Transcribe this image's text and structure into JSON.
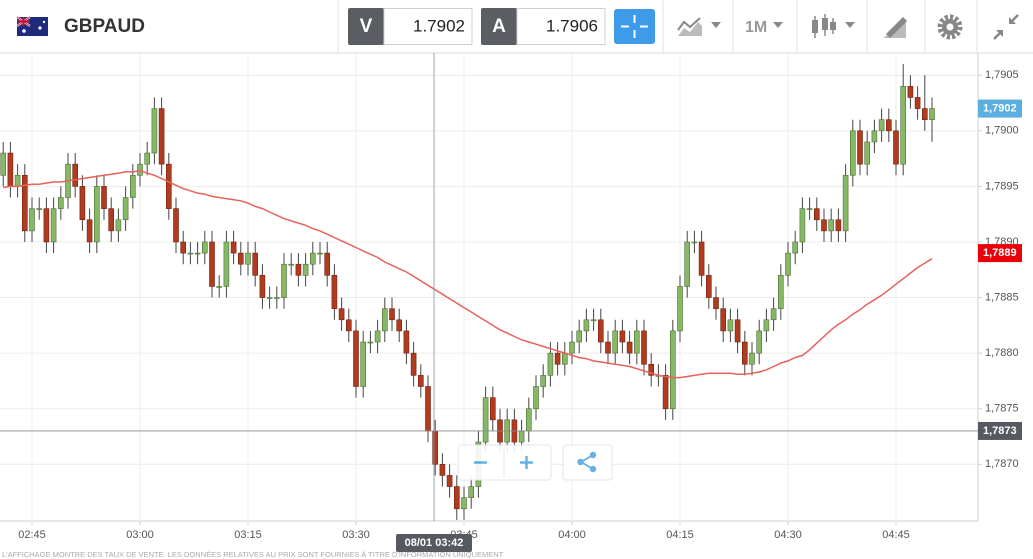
{
  "header": {
    "symbol": "GBPAUD",
    "sell_label": "V",
    "sell_price": 1.7902,
    "buy_label": "A",
    "buy_price": 1.7906,
    "timeframe": "1M"
  },
  "chart_data": {
    "type": "candlestick",
    "categories": [
      null,
      null,
      null,
      null,
      "02:45",
      null,
      null,
      null,
      null,
      null,
      null,
      null,
      null,
      null,
      null,
      null,
      null,
      null,
      null,
      "03:00",
      null,
      null,
      null,
      null,
      null,
      null,
      null,
      null,
      null,
      null,
      null,
      null,
      null,
      null,
      "03:15",
      null,
      null,
      null,
      null,
      null,
      null,
      null,
      null,
      null,
      null,
      null,
      null,
      null,
      null,
      "03:30",
      null,
      null,
      null,
      null,
      null,
      null,
      null,
      null,
      null,
      null,
      null,
      null,
      null,
      null,
      "03:45",
      null,
      null,
      null,
      null,
      null,
      null,
      null,
      null,
      null,
      null,
      null,
      null,
      null,
      null,
      "04:00",
      null,
      null,
      null,
      null,
      null,
      null,
      null,
      null,
      null,
      null,
      null,
      null,
      null,
      null,
      "04:15",
      null,
      null,
      null,
      null,
      null,
      null,
      null,
      null,
      null,
      null,
      null,
      null,
      null,
      null,
      "04:30",
      null,
      null,
      null,
      null,
      null,
      null,
      null,
      null,
      null,
      null,
      null,
      null,
      null,
      null,
      "04:45",
      null,
      null,
      null,
      null,
      null
    ],
    "open": [
      1.7896,
      1.7898,
      1.7895,
      1.7896,
      1.7891,
      1.7893,
      1.7893,
      1.789,
      1.7893,
      1.7894,
      1.7897,
      1.7895,
      1.7892,
      1.789,
      1.7895,
      1.7893,
      1.7891,
      1.7892,
      1.7894,
      1.7896,
      1.7897,
      1.7898,
      1.7902,
      1.7897,
      1.7893,
      1.789,
      1.7889,
      1.7889,
      1.7889,
      1.789,
      1.7886,
      1.7886,
      1.789,
      1.7889,
      1.7888,
      1.7889,
      1.7887,
      1.7885,
      1.7885,
      1.7885,
      1.7888,
      1.7888,
      1.7887,
      1.7888,
      1.7889,
      1.7889,
      1.7887,
      1.7884,
      1.7883,
      1.7882,
      1.7877,
      1.7881,
      1.7881,
      1.7882,
      1.7884,
      1.7883,
      1.7882,
      1.788,
      1.7878,
      1.7877,
      1.7873,
      1.787,
      1.7869,
      1.7868,
      1.7866,
      1.7867,
      1.7868,
      1.7872,
      1.7876,
      1.7874,
      1.7872,
      1.7874,
      1.7872,
      1.7873,
      1.7875,
      1.7877,
      1.7878,
      1.788,
      1.7879,
      1.788,
      1.7881,
      1.7882,
      1.7883,
      1.7883,
      1.7881,
      1.788,
      1.7882,
      1.7881,
      1.788,
      1.7882,
      1.7879,
      1.7878,
      1.7878,
      1.7875,
      1.7882,
      1.7886,
      1.789,
      1.789,
      1.7887,
      1.7885,
      1.7884,
      1.7882,
      1.7883,
      1.7881,
      1.7879,
      1.788,
      1.7882,
      1.7883,
      1.7884,
      1.7887,
      1.7889,
      1.789,
      1.7893,
      1.7893,
      1.7892,
      1.7891,
      1.7892,
      1.7891,
      1.7896,
      1.79,
      1.7897,
      1.7899,
      1.79,
      1.7901,
      1.79,
      1.7897,
      1.7904,
      1.7903,
      1.7902,
      1.7901
    ],
    "high": [
      1.7899,
      1.7899,
      1.7897,
      1.7897,
      1.7894,
      1.7894,
      1.7894,
      1.7894,
      1.7895,
      1.7898,
      1.7898,
      1.7896,
      1.7893,
      1.7896,
      1.7896,
      1.7894,
      1.7893,
      1.7895,
      1.7897,
      1.7898,
      1.7899,
      1.7903,
      1.7903,
      1.7898,
      1.7894,
      1.7891,
      1.789,
      1.789,
      1.7891,
      1.7891,
      1.7887,
      1.7891,
      1.7891,
      1.789,
      1.789,
      1.789,
      1.7888,
      1.7886,
      1.7886,
      1.7889,
      1.7889,
      1.7889,
      1.7889,
      1.789,
      1.789,
      1.789,
      1.7888,
      1.7885,
      1.7884,
      1.7883,
      1.7882,
      1.7882,
      1.7883,
      1.7885,
      1.7885,
      1.7884,
      1.7883,
      1.7881,
      1.7879,
      1.7878,
      1.7874,
      1.7871,
      1.787,
      1.7869,
      1.7868,
      1.7869,
      1.7873,
      1.7877,
      1.7877,
      1.7875,
      1.7875,
      1.7875,
      1.7874,
      1.7876,
      1.7878,
      1.7879,
      1.7881,
      1.7881,
      1.7881,
      1.7882,
      1.7883,
      1.7884,
      1.7884,
      1.7884,
      1.7882,
      1.7883,
      1.7883,
      1.7882,
      1.7883,
      1.7883,
      1.788,
      1.7879,
      1.7879,
      1.7883,
      1.7887,
      1.7891,
      1.7891,
      1.7891,
      1.7888,
      1.7886,
      1.7885,
      1.7884,
      1.7884,
      1.7882,
      1.7881,
      1.7883,
      1.7884,
      1.7885,
      1.7888,
      1.789,
      1.7891,
      1.7894,
      1.7894,
      1.7894,
      1.7893,
      1.7893,
      1.7893,
      1.7897,
      1.7901,
      1.7901,
      1.79,
      1.7901,
      1.7902,
      1.7902,
      1.7901,
      1.7906,
      1.7905,
      1.7904,
      1.7905,
      1.7903
    ],
    "low": [
      1.7895,
      1.7894,
      1.7894,
      1.789,
      1.789,
      1.7892,
      1.7889,
      1.7889,
      1.7892,
      1.7893,
      1.7894,
      1.7891,
      1.7889,
      1.7889,
      1.7892,
      1.789,
      1.789,
      1.7891,
      1.7893,
      1.7895,
      1.7896,
      1.7897,
      1.7896,
      1.7892,
      1.7889,
      1.7888,
      1.7888,
      1.7888,
      1.7888,
      1.7885,
      1.7885,
      1.7885,
      1.7888,
      1.7887,
      1.7887,
      1.7886,
      1.7884,
      1.7884,
      1.7884,
      1.7884,
      1.7887,
      1.7886,
      1.7886,
      1.7887,
      1.7888,
      1.7886,
      1.7883,
      1.7882,
      1.7881,
      1.7876,
      1.7876,
      1.788,
      1.788,
      1.7881,
      1.7882,
      1.7881,
      1.7879,
      1.7877,
      1.7876,
      1.7872,
      1.7869,
      1.7868,
      1.7867,
      1.7865,
      1.7865,
      1.7866,
      1.7867,
      1.7871,
      1.7873,
      1.7871,
      1.7871,
      1.7871,
      1.7871,
      1.7872,
      1.7874,
      1.7876,
      1.7877,
      1.7878,
      1.7878,
      1.7879,
      1.788,
      1.7881,
      1.7882,
      1.788,
      1.7879,
      1.7879,
      1.788,
      1.7879,
      1.7879,
      1.7878,
      1.7877,
      1.7877,
      1.7874,
      1.7874,
      1.7881,
      1.7885,
      1.7889,
      1.7886,
      1.7884,
      1.7883,
      1.7881,
      1.7881,
      1.788,
      1.7878,
      1.7878,
      1.7879,
      1.7881,
      1.7882,
      1.7883,
      1.7886,
      1.7888,
      1.7889,
      1.7892,
      1.7891,
      1.789,
      1.789,
      1.789,
      1.789,
      1.7895,
      1.7896,
      1.7896,
      1.7898,
      1.7899,
      1.7899,
      1.7896,
      1.7896,
      1.7902,
      1.7901,
      1.79,
      1.7899
    ],
    "close": [
      1.7898,
      1.7895,
      1.7896,
      1.7891,
      1.7893,
      1.7893,
      1.789,
      1.7893,
      1.7894,
      1.7897,
      1.7895,
      1.7892,
      1.789,
      1.7895,
      1.7893,
      1.7891,
      1.7892,
      1.7894,
      1.7896,
      1.7897,
      1.7898,
      1.7902,
      1.7897,
      1.7893,
      1.789,
      1.7889,
      1.7889,
      1.7889,
      1.789,
      1.7886,
      1.7886,
      1.789,
      1.7889,
      1.7888,
      1.7889,
      1.7887,
      1.7885,
      1.7885,
      1.7885,
      1.7888,
      1.7888,
      1.7887,
      1.7888,
      1.7889,
      1.7889,
      1.7887,
      1.7884,
      1.7883,
      1.7882,
      1.7877,
      1.7881,
      1.7881,
      1.7882,
      1.7884,
      1.7883,
      1.7882,
      1.788,
      1.7878,
      1.7877,
      1.7873,
      1.787,
      1.7869,
      1.7868,
      1.7866,
      1.7867,
      1.7868,
      1.7872,
      1.7876,
      1.7874,
      1.7872,
      1.7874,
      1.7872,
      1.7873,
      1.7875,
      1.7877,
      1.7878,
      1.788,
      1.7879,
      1.788,
      1.7881,
      1.7882,
      1.7883,
      1.7883,
      1.7881,
      1.788,
      1.7882,
      1.7881,
      1.788,
      1.7882,
      1.7879,
      1.7878,
      1.7878,
      1.7875,
      1.7882,
      1.7886,
      1.789,
      1.789,
      1.7887,
      1.7885,
      1.7884,
      1.7882,
      1.7883,
      1.7881,
      1.7879,
      1.788,
      1.7882,
      1.7883,
      1.7884,
      1.7887,
      1.7889,
      1.789,
      1.7893,
      1.7893,
      1.7892,
      1.7891,
      1.7892,
      1.7891,
      1.7896,
      1.79,
      1.7897,
      1.7899,
      1.79,
      1.7901,
      1.79,
      1.7897,
      1.7904,
      1.7903,
      1.7902,
      1.7901,
      1.7902
    ],
    "up_color": "#86b866",
    "down_color": "#b23a1e",
    "overlay": {
      "color": "#e8615a",
      "values": [
        1.78949,
        1.7895,
        1.7895,
        1.78951,
        1.78952,
        1.78952,
        1.78953,
        1.78954,
        1.78954,
        1.78955,
        1.78956,
        1.78957,
        1.78958,
        1.78959,
        1.7896,
        1.78961,
        1.78962,
        1.78963,
        1.78963,
        1.78964,
        1.78962,
        1.7896,
        1.78957,
        1.78954,
        1.78951,
        1.78948,
        1.78946,
        1.78944,
        1.78943,
        1.78941,
        1.7894,
        1.78939,
        1.78938,
        1.78937,
        1.78935,
        1.78932,
        1.7893,
        1.78927,
        1.78924,
        1.78921,
        1.78919,
        1.78917,
        1.78915,
        1.78912,
        1.7891,
        1.78907,
        1.78904,
        1.78901,
        1.78898,
        1.78895,
        1.78892,
        1.78889,
        1.78886,
        1.78882,
        1.78879,
        1.78876,
        1.78873,
        1.78869,
        1.78865,
        1.78861,
        1.78857,
        1.78853,
        1.78849,
        1.78845,
        1.78841,
        1.78837,
        1.78833,
        1.78829,
        1.78825,
        1.78821,
        1.78818,
        1.78815,
        1.78812,
        1.7881,
        1.78808,
        1.78806,
        1.78804,
        1.78802,
        1.788,
        1.78798,
        1.78796,
        1.78795,
        1.78793,
        1.78792,
        1.78791,
        1.7879,
        1.78789,
        1.78788,
        1.78786,
        1.78784,
        1.78782,
        1.7878,
        1.78779,
        1.78778,
        1.78778,
        1.78779,
        1.7878,
        1.78781,
        1.78782,
        1.78782,
        1.78782,
        1.78782,
        1.78781,
        1.78781,
        1.78782,
        1.78783,
        1.78785,
        1.78788,
        1.78791,
        1.78793,
        1.78796,
        1.78798,
        1.78803,
        1.78809,
        1.78815,
        1.78821,
        1.78826,
        1.7883,
        1.78835,
        1.78839,
        1.78844,
        1.78848,
        1.78852,
        1.78857,
        1.78862,
        1.78867,
        1.78872,
        1.78877,
        1.78881,
        1.78885
      ]
    },
    "ylim": [
      1.78649,
      1.7907
    ],
    "yticks": [
      {
        "value": 1.787,
        "label": "1,7870"
      },
      {
        "value": 1.7875,
        "label": "1,7875"
      },
      {
        "value": 1.788,
        "label": "1,7880"
      },
      {
        "value": 1.7885,
        "label": "1,7885"
      },
      {
        "value": 1.789,
        "label": "1,7890"
      },
      {
        "value": 1.7895,
        "label": "1,7895"
      },
      {
        "value": 1.79,
        "label": "1,7900"
      },
      {
        "value": 1.7905,
        "label": "1,7905"
      }
    ],
    "grid": true,
    "price_tags": [
      {
        "value": 1.7902,
        "label": "1,7902",
        "color": "#5aaee0"
      },
      {
        "value": 1.7889,
        "label": "1,7889",
        "color": "#e8000b"
      }
    ],
    "crosshair": {
      "x_label": "08/01 03:42",
      "y_value": 1.7873,
      "y_label": "1,7873",
      "color": "#555a60"
    }
  },
  "footer": "L'AFFICHAGE MONTRE DES TAUX DE VENTE. LES DONNÉES RELATIVES AU PRIX SONT FOURNIES À TITRE D'INFORMATION UNIQUEMENT"
}
